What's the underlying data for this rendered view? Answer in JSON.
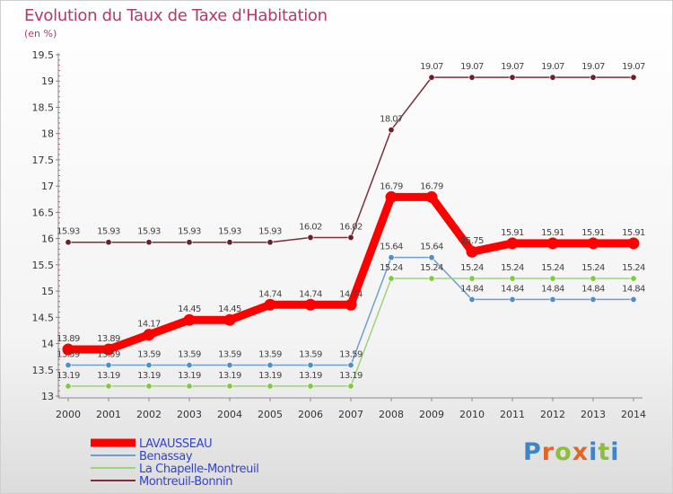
{
  "title": "Evolution du Taux de Taxe d'Habitation",
  "subtitle": "(en %)",
  "logo": [
    "P",
    "r",
    "o",
    "x",
    "i",
    "t",
    "i"
  ],
  "chart_data": {
    "type": "line",
    "x": [
      "2000",
      "2001",
      "2002",
      "2003",
      "2004",
      "2005",
      "2006",
      "2007",
      "2008",
      "2009",
      "2010",
      "2011",
      "2012",
      "2013",
      "2014"
    ],
    "yticks": [
      "13",
      "13.5",
      "14",
      "14.5",
      "15",
      "15.5",
      "16",
      "16.5",
      "17",
      "17.5",
      "18",
      "18.5",
      "19",
      "19.5"
    ],
    "ylim": [
      13,
      19.5
    ],
    "grid": false,
    "legend_position": "bottom-left",
    "series": [
      {
        "name": "LAVAUSSEAU",
        "color": "#ff0000",
        "width": 9,
        "values": [
          13.89,
          13.89,
          14.17,
          14.45,
          14.45,
          14.74,
          14.74,
          14.74,
          16.79,
          16.79,
          15.75,
          15.91,
          15.91,
          15.91,
          15.91
        ],
        "labels": [
          "13.89",
          "13.89",
          "14.17",
          "14.45",
          "14.45",
          "14.74",
          "14.74",
          "14.74",
          "16.79",
          "16.79",
          "15.75",
          "15.91",
          "15.91",
          "15.91",
          "15.91"
        ]
      },
      {
        "name": "Benassay",
        "color": "#6f9fcf",
        "width": 1.5,
        "marker": "#4f8fc8",
        "values": [
          13.59,
          13.59,
          13.59,
          13.59,
          13.59,
          13.59,
          13.59,
          13.59,
          15.64,
          15.64,
          14.84,
          14.84,
          14.84,
          14.84,
          14.84
        ],
        "labels": [
          "13.59",
          "13.59",
          "13.59",
          "13.59",
          "13.59",
          "13.59",
          "13.59",
          "13.59",
          "15.64",
          "15.64",
          "14.84",
          "14.84",
          "14.84",
          "14.84",
          "14.84"
        ]
      },
      {
        "name": "La Chapelle-Montreuil",
        "color": "#9bd47a",
        "width": 1.5,
        "marker": "#7ccc3c",
        "values": [
          13.19,
          13.19,
          13.19,
          13.19,
          13.19,
          13.19,
          13.19,
          13.19,
          15.24,
          15.24,
          15.24,
          15.24,
          15.24,
          15.24,
          15.24
        ],
        "labels": [
          "13.19",
          "13.19",
          "13.19",
          "13.19",
          "13.19",
          "13.19",
          "13.19",
          "13.19",
          "15.24",
          "15.24",
          "15.24",
          "15.24",
          "15.24",
          "15.24",
          "15.24"
        ]
      },
      {
        "name": "Montreuil-Bonnin",
        "color": "#7a2f3a",
        "width": 1.5,
        "marker": "#6b1f2a",
        "values": [
          15.93,
          15.93,
          15.93,
          15.93,
          15.93,
          15.93,
          16.02,
          16.02,
          18.07,
          19.07,
          19.07,
          19.07,
          19.07,
          19.07,
          19.07
        ],
        "labels": [
          "15.93",
          "15.93",
          "15.93",
          "15.93",
          "15.93",
          "15.93",
          "16.02",
          "16.02",
          "18.07",
          "19.07",
          "19.07",
          "19.07",
          "19.07",
          "19.07",
          "19.07"
        ]
      }
    ]
  }
}
